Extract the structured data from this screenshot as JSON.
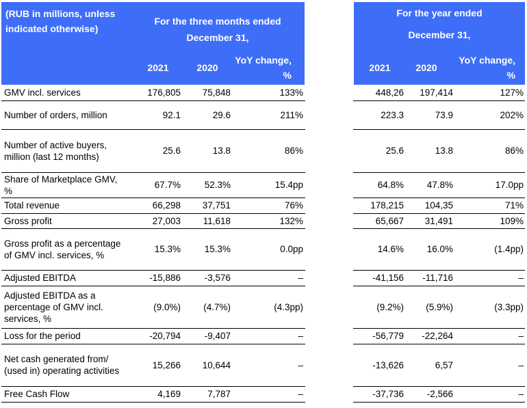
{
  "header": {
    "units": "(RUB in millions, unless indicated otherwise)",
    "quarter_group": "For the three months ended December 31,",
    "year_group_line1": "For the year ended",
    "year_group_line2": "December 31,",
    "col_2021": "2021",
    "col_2020": "2020",
    "col_yoy": "YoY change, %"
  },
  "rows": [
    {
      "label": "GMV incl. services",
      "q2021": "176,805",
      "q2020": "75,848",
      "qyoy": "133%",
      "y2021": "448,26",
      "y2020": "197,414",
      "yyoy": "127%"
    },
    {
      "label": "Number of orders, million",
      "q2021": "92.1",
      "q2020": "29.6",
      "qyoy": "211%",
      "y2021": "223.3",
      "y2020": "73.9",
      "yyoy": "202%"
    },
    {
      "label": "Number of active buyers, million (last 12 months)",
      "q2021": "25.6",
      "q2020": "13.8",
      "qyoy": "86%",
      "y2021": "25.6",
      "y2020": "13.8",
      "yyoy": "86%"
    },
    {
      "label": "Share of Marketplace GMV, %",
      "q2021": "67.7%",
      "q2020": "52.3%",
      "qyoy": "15.4pp",
      "y2021": "64.8%",
      "y2020": "47.8%",
      "yyoy": "17.0pp"
    },
    {
      "label": "Total revenue",
      "q2021": "66,298",
      "q2020": "37,751",
      "qyoy": "76%",
      "y2021": "178,215",
      "y2020": "104,35",
      "yyoy": "71%"
    },
    {
      "label": "Gross profit",
      "q2021": "27,003",
      "q2020": "11,618",
      "qyoy": "132%",
      "y2021": "65,667",
      "y2020": "31,491",
      "yyoy": "109%"
    },
    {
      "label": "Gross profit as a percentage of GMV incl. services, %",
      "q2021": "15.3%",
      "q2020": "15.3%",
      "qyoy": "0.0pp",
      "y2021": "14.6%",
      "y2020": "16.0%",
      "yyoy": "(1.4pp)"
    },
    {
      "label": "Adjusted EBITDA",
      "q2021": "-15,886",
      "q2020": "-3,576",
      "qyoy": "–",
      "y2021": "-41,156",
      "y2020": "-11,716",
      "yyoy": "–"
    },
    {
      "label": "Adjusted EBITDA as a percentage of GMV incl. services, %",
      "q2021": "(9.0%)",
      "q2020": "(4.7%)",
      "qyoy": "(4.3pp)",
      "y2021": "(9.2%)",
      "y2020": "(5.9%)",
      "yyoy": "(3.3pp)"
    },
    {
      "label": "Loss for the period",
      "q2021": "-20,794",
      "q2020": "-9,407",
      "qyoy": "–",
      "y2021": "-56,779",
      "y2020": "-22,264",
      "yyoy": "–"
    },
    {
      "label": "Net cash generated from/ (used in) operating activities",
      "q2021": "15,266",
      "q2020": "10,644",
      "qyoy": "–",
      "y2021": "-13,626",
      "y2020": "6,57",
      "yyoy": "–"
    },
    {
      "label": "Free Cash Flow",
      "q2021": "4,169",
      "q2020": "7,787",
      "qyoy": "–",
      "y2021": "-37,736",
      "y2020": "-2,566",
      "yyoy": "–"
    }
  ]
}
